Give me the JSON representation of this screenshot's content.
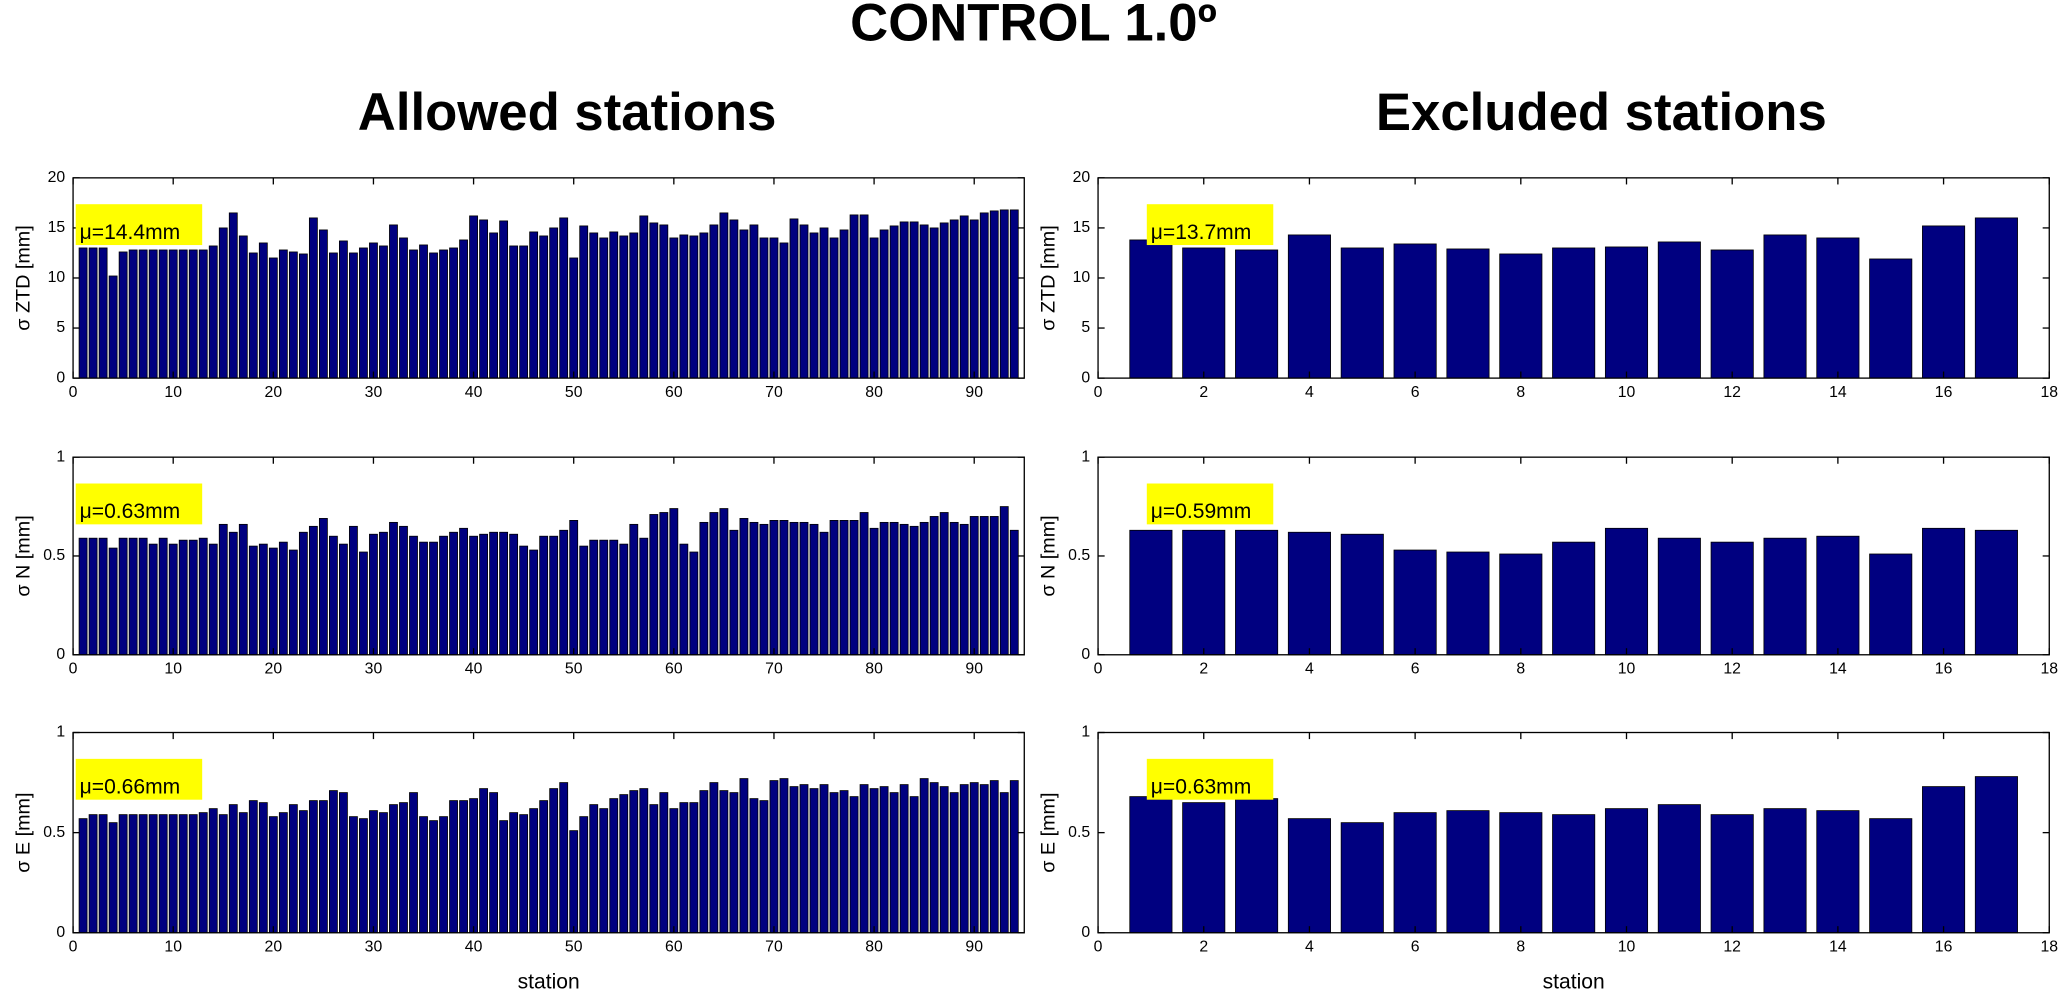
{
  "title": "CONTROL 1.0º",
  "column_titles": [
    "Allowed stations",
    "Excluded stations"
  ],
  "chart_data": [
    {
      "type": "bar",
      "ylabel": "σ ZTD [mm]",
      "annotation": "μ=14.4mm",
      "color": "#000080",
      "x": [
        1,
        2,
        3,
        4,
        5,
        6,
        7,
        8,
        9,
        10,
        11,
        12,
        13,
        14,
        15,
        16,
        17,
        18,
        19,
        20,
        21,
        22,
        23,
        24,
        25,
        26,
        27,
        28,
        29,
        30,
        31,
        32,
        33,
        34,
        35,
        36,
        37,
        38,
        39,
        40,
        41,
        42,
        43,
        44,
        45,
        46,
        47,
        48,
        49,
        50,
        51,
        52,
        53,
        54,
        55,
        56,
        57,
        58,
        59,
        60,
        61,
        62,
        63,
        64,
        65,
        66,
        67,
        68,
        69,
        70,
        71,
        72,
        73,
        74,
        75,
        76,
        77,
        78,
        79,
        80,
        81,
        82,
        83,
        84,
        85,
        86,
        87,
        88,
        89,
        90,
        91,
        92,
        93,
        94
      ],
      "values": [
        13,
        13,
        13,
        10.2,
        12.6,
        12.8,
        12.8,
        12.8,
        12.8,
        12.8,
        12.8,
        12.8,
        12.8,
        13.2,
        15,
        16.5,
        14.2,
        12.5,
        13.5,
        12,
        12.8,
        12.6,
        12.4,
        16,
        14.8,
        12.5,
        13.7,
        12.5,
        13,
        13.5,
        13.2,
        15.3,
        14,
        12.8,
        13.3,
        12.5,
        12.8,
        13,
        13.8,
        16.2,
        15.8,
        14.5,
        15.7,
        13.2,
        13.2,
        14.6,
        14.2,
        15,
        16,
        12,
        15.2,
        14.5,
        14,
        14.6,
        14.2,
        14.5,
        16.2,
        15.5,
        15.3,
        14,
        14.3,
        14.2,
        14.5,
        15.3,
        16.5,
        15.8,
        14.8,
        15.3,
        14,
        14,
        13.5,
        15.9,
        15.3,
        14.5,
        15,
        14,
        14.8,
        16.3,
        16.3,
        14,
        14.8,
        15.2,
        15.6,
        15.6,
        15.3,
        15,
        15.5,
        15.8,
        16.2,
        15.8,
        16.5,
        16.7,
        16.8,
        16.8
      ],
      "xlim": [
        0,
        95
      ],
      "xticks": [
        0,
        10,
        20,
        30,
        40,
        50,
        60,
        70,
        80,
        90
      ],
      "ylim": [
        0,
        20
      ],
      "yticks": [
        0,
        5,
        10,
        15,
        20
      ]
    },
    {
      "type": "bar",
      "ylabel": "σ N [mm]",
      "annotation": "μ=0.63mm",
      "color": "#000080",
      "x": [
        1,
        2,
        3,
        4,
        5,
        6,
        7,
        8,
        9,
        10,
        11,
        12,
        13,
        14,
        15,
        16,
        17,
        18,
        19,
        20,
        21,
        22,
        23,
        24,
        25,
        26,
        27,
        28,
        29,
        30,
        31,
        32,
        33,
        34,
        35,
        36,
        37,
        38,
        39,
        40,
        41,
        42,
        43,
        44,
        45,
        46,
        47,
        48,
        49,
        50,
        51,
        52,
        53,
        54,
        55,
        56,
        57,
        58,
        59,
        60,
        61,
        62,
        63,
        64,
        65,
        66,
        67,
        68,
        69,
        70,
        71,
        72,
        73,
        74,
        75,
        76,
        77,
        78,
        79,
        80,
        81,
        82,
        83,
        84,
        85,
        86,
        87,
        88,
        89,
        90,
        91,
        92,
        93,
        94
      ],
      "values": [
        0.59,
        0.59,
        0.59,
        0.54,
        0.59,
        0.59,
        0.59,
        0.56,
        0.59,
        0.56,
        0.58,
        0.58,
        0.59,
        0.56,
        0.66,
        0.62,
        0.66,
        0.55,
        0.56,
        0.54,
        0.57,
        0.53,
        0.62,
        0.65,
        0.69,
        0.6,
        0.56,
        0.65,
        0.52,
        0.61,
        0.62,
        0.67,
        0.65,
        0.6,
        0.57,
        0.57,
        0.6,
        0.62,
        0.64,
        0.6,
        0.61,
        0.62,
        0.62,
        0.61,
        0.55,
        0.53,
        0.6,
        0.6,
        0.63,
        0.68,
        0.55,
        0.58,
        0.58,
        0.58,
        0.56,
        0.66,
        0.59,
        0.71,
        0.72,
        0.74,
        0.56,
        0.52,
        0.67,
        0.72,
        0.74,
        0.63,
        0.69,
        0.67,
        0.66,
        0.68,
        0.68,
        0.67,
        0.67,
        0.66,
        0.62,
        0.68,
        0.68,
        0.68,
        0.72,
        0.64,
        0.67,
        0.67,
        0.66,
        0.65,
        0.67,
        0.7,
        0.72,
        0.67,
        0.66,
        0.7,
        0.7,
        0.7,
        0.75,
        0.63
      ],
      "xlim": [
        0,
        95
      ],
      "xticks": [
        0,
        10,
        20,
        30,
        40,
        50,
        60,
        70,
        80,
        90
      ],
      "ylim": [
        0,
        1
      ],
      "yticks": [
        0,
        0.5,
        1
      ]
    },
    {
      "type": "bar",
      "ylabel": "σ E [mm]",
      "xlabel": "station",
      "annotation": "μ=0.66mm",
      "color": "#000080",
      "x": [
        1,
        2,
        3,
        4,
        5,
        6,
        7,
        8,
        9,
        10,
        11,
        12,
        13,
        14,
        15,
        16,
        17,
        18,
        19,
        20,
        21,
        22,
        23,
        24,
        25,
        26,
        27,
        28,
        29,
        30,
        31,
        32,
        33,
        34,
        35,
        36,
        37,
        38,
        39,
        40,
        41,
        42,
        43,
        44,
        45,
        46,
        47,
        48,
        49,
        50,
        51,
        52,
        53,
        54,
        55,
        56,
        57,
        58,
        59,
        60,
        61,
        62,
        63,
        64,
        65,
        66,
        67,
        68,
        69,
        70,
        71,
        72,
        73,
        74,
        75,
        76,
        77,
        78,
        79,
        80,
        81,
        82,
        83,
        84,
        85,
        86,
        87,
        88,
        89,
        90,
        91,
        92,
        93,
        94
      ],
      "values": [
        0.57,
        0.59,
        0.59,
        0.55,
        0.59,
        0.59,
        0.59,
        0.59,
        0.59,
        0.59,
        0.59,
        0.59,
        0.6,
        0.62,
        0.59,
        0.64,
        0.6,
        0.66,
        0.65,
        0.58,
        0.6,
        0.64,
        0.61,
        0.66,
        0.66,
        0.71,
        0.7,
        0.58,
        0.57,
        0.61,
        0.6,
        0.64,
        0.65,
        0.7,
        0.58,
        0.56,
        0.58,
        0.66,
        0.66,
        0.67,
        0.72,
        0.7,
        0.56,
        0.6,
        0.59,
        0.62,
        0.66,
        0.72,
        0.75,
        0.51,
        0.58,
        0.64,
        0.62,
        0.67,
        0.69,
        0.71,
        0.72,
        0.64,
        0.7,
        0.62,
        0.65,
        0.65,
        0.71,
        0.75,
        0.71,
        0.7,
        0.77,
        0.67,
        0.66,
        0.76,
        0.77,
        0.73,
        0.74,
        0.72,
        0.74,
        0.7,
        0.71,
        0.68,
        0.74,
        0.72,
        0.73,
        0.7,
        0.74,
        0.68,
        0.77,
        0.75,
        0.73,
        0.7,
        0.74,
        0.75,
        0.74,
        0.76,
        0.7,
        0.76
      ],
      "xlim": [
        0,
        95
      ],
      "xticks": [
        0,
        10,
        20,
        30,
        40,
        50,
        60,
        70,
        80,
        90
      ],
      "ylim": [
        0,
        1
      ],
      "yticks": [
        0,
        0.5,
        1
      ]
    },
    {
      "type": "bar",
      "ylabel": "σ ZTD [mm]",
      "annotation": "μ=13.7mm",
      "color": "#000080",
      "x": [
        1,
        2,
        3,
        4,
        5,
        6,
        7,
        8,
        9,
        10,
        11,
        12,
        13,
        14,
        15,
        16,
        17
      ],
      "values": [
        13.8,
        13,
        12.8,
        14.3,
        13,
        13.4,
        12.9,
        12.4,
        13,
        13.1,
        13.6,
        12.8,
        14.3,
        14,
        11.9,
        15.2,
        16
      ],
      "xlim": [
        0,
        18
      ],
      "xticks": [
        0,
        2,
        4,
        6,
        8,
        10,
        12,
        14,
        16,
        18
      ],
      "ylim": [
        0,
        20
      ],
      "yticks": [
        0,
        5,
        10,
        15,
        20
      ]
    },
    {
      "type": "bar",
      "ylabel": "σ N [mm]",
      "annotation": "μ=0.59mm",
      "color": "#000080",
      "x": [
        1,
        2,
        3,
        4,
        5,
        6,
        7,
        8,
        9,
        10,
        11,
        12,
        13,
        14,
        15,
        16,
        17
      ],
      "values": [
        0.63,
        0.63,
        0.63,
        0.62,
        0.61,
        0.53,
        0.52,
        0.51,
        0.57,
        0.64,
        0.59,
        0.57,
        0.59,
        0.6,
        0.51,
        0.64,
        0.63
      ],
      "xlim": [
        0,
        18
      ],
      "xticks": [
        0,
        2,
        4,
        6,
        8,
        10,
        12,
        14,
        16,
        18
      ],
      "ylim": [
        0,
        1
      ],
      "yticks": [
        0,
        0.5,
        1
      ]
    },
    {
      "type": "bar",
      "ylabel": "σ E [mm]",
      "xlabel": "station",
      "annotation": "μ=0.63mm",
      "color": "#000080",
      "x": [
        1,
        2,
        3,
        4,
        5,
        6,
        7,
        8,
        9,
        10,
        11,
        12,
        13,
        14,
        15,
        16,
        17
      ],
      "values": [
        0.68,
        0.65,
        0.67,
        0.57,
        0.55,
        0.6,
        0.61,
        0.6,
        0.59,
        0.62,
        0.64,
        0.59,
        0.62,
        0.61,
        0.57,
        0.73,
        0.78
      ],
      "xlim": [
        0,
        18
      ],
      "xticks": [
        0,
        2,
        4,
        6,
        8,
        10,
        12,
        14,
        16,
        18
      ],
      "ylim": [
        0,
        1
      ],
      "yticks": [
        0,
        0.5,
        1
      ]
    }
  ]
}
